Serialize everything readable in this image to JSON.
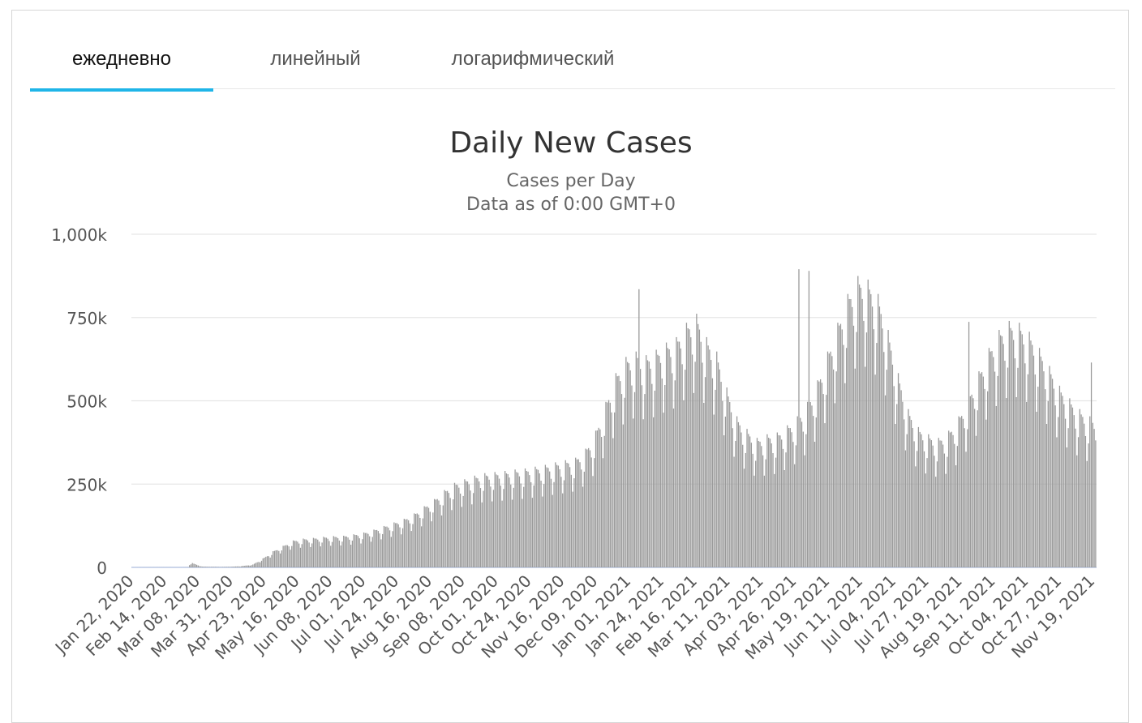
{
  "tabs": [
    {
      "label": "ежедневно",
      "active": true
    },
    {
      "label": "линейный",
      "active": false
    },
    {
      "label": "логарифмический",
      "active": false
    }
  ],
  "colors": {
    "accent": "#1fb5e8",
    "bar": "#999999",
    "grid": "#e6e6e6",
    "axis": "#ccd6eb"
  },
  "chart_data": {
    "type": "bar",
    "title": "Daily New Cases",
    "subtitle_lines": [
      "Cases per Day",
      "Data as of 0:00 GMT+0"
    ],
    "xlabel": "",
    "ylabel": "",
    "ylim": [
      0,
      1000000
    ],
    "y_ticks": [
      {
        "value": 0,
        "label": "0"
      },
      {
        "value": 250000,
        "label": "250k"
      },
      {
        "value": 500000,
        "label": "500k"
      },
      {
        "value": 750000,
        "label": "750k"
      },
      {
        "value": 1000000,
        "label": "1,000k"
      }
    ],
    "x_tick_labels": [
      "Jan 22, 2020",
      "Feb 14, 2020",
      "Mar 08, 2020",
      "Mar 31, 2020",
      "Apr 23, 2020",
      "May 16, 2020",
      "Jun 08, 2020",
      "Jul 01, 2020",
      "Jul 24, 2020",
      "Aug 16, 2020",
      "Sep 08, 2020",
      "Oct 01, 2020",
      "Oct 24, 2020",
      "Nov 16, 2020",
      "Dec 09, 2020",
      "Jan 01, 2021",
      "Jan 24, 2021",
      "Feb 16, 2021",
      "Mar 11, 2021",
      "Apr 03, 2021",
      "Apr 26, 2021",
      "May 19, 2021",
      "Jun 11, 2021",
      "Jul 04, 2021",
      "Jul 27, 2021",
      "Aug 19, 2021",
      "Sep 11, 2021",
      "Oct 04, 2021",
      "Oct 27, 2021",
      "Nov 19, 2021"
    ],
    "grid": true,
    "legend": "none",
    "series": [
      {
        "start_date": "2020-01-22",
        "weekly_values": [
          1000,
          1500,
          3000,
          4000,
          2500,
          1500,
          12000,
          2000,
          1500,
          1000,
          2000,
          4000,
          8000,
          25000,
          45000,
          60000,
          75000,
          80000,
          82000,
          85000,
          87000,
          88000,
          92000,
          97000,
          105000,
          115000,
          125000,
          135000,
          150000,
          170000,
          190000,
          215000,
          235000,
          245000,
          255000,
          262000,
          265000,
          268000,
          272000,
          275000,
          280000,
          285000,
          292000,
          298000,
          305000,
          330000,
          380000,
          460000,
          540000,
          585000,
          600000,
          590000,
          605000,
          625000,
          640000,
          680000,
          705000,
          640000,
          600000,
          500000,
          420000,
          385000,
          360000,
          370000,
          375000,
          395000,
          420000,
          460000,
          520000,
          600000,
          680000,
          760000,
          810000,
          800000,
          760000,
          660000,
          540000,
          440000,
          390000,
          370000,
          360000,
          380000,
          420000,
          480000,
          545000,
          610000,
          660000,
          685000,
          680000,
          655000,
          610000,
          560000,
          505000,
          470000,
          440000,
          420000,
          410000,
          415000,
          430000,
          445000,
          470000,
          520000,
          590000
        ],
        "weekday_factors": [
          1.08,
          1.05,
          1.04,
          1.0,
          0.92,
          0.75,
          0.88
        ],
        "peak_days": [
          {
            "date": "2021-01-08",
            "value": 835000
          },
          {
            "date": "2021-04-29",
            "value": 895000
          },
          {
            "date": "2021-05-06",
            "value": 890000
          },
          {
            "date": "2021-08-25",
            "value": 737000
          },
          {
            "date": "2021-11-18",
            "value": 615000
          }
        ]
      }
    ]
  }
}
